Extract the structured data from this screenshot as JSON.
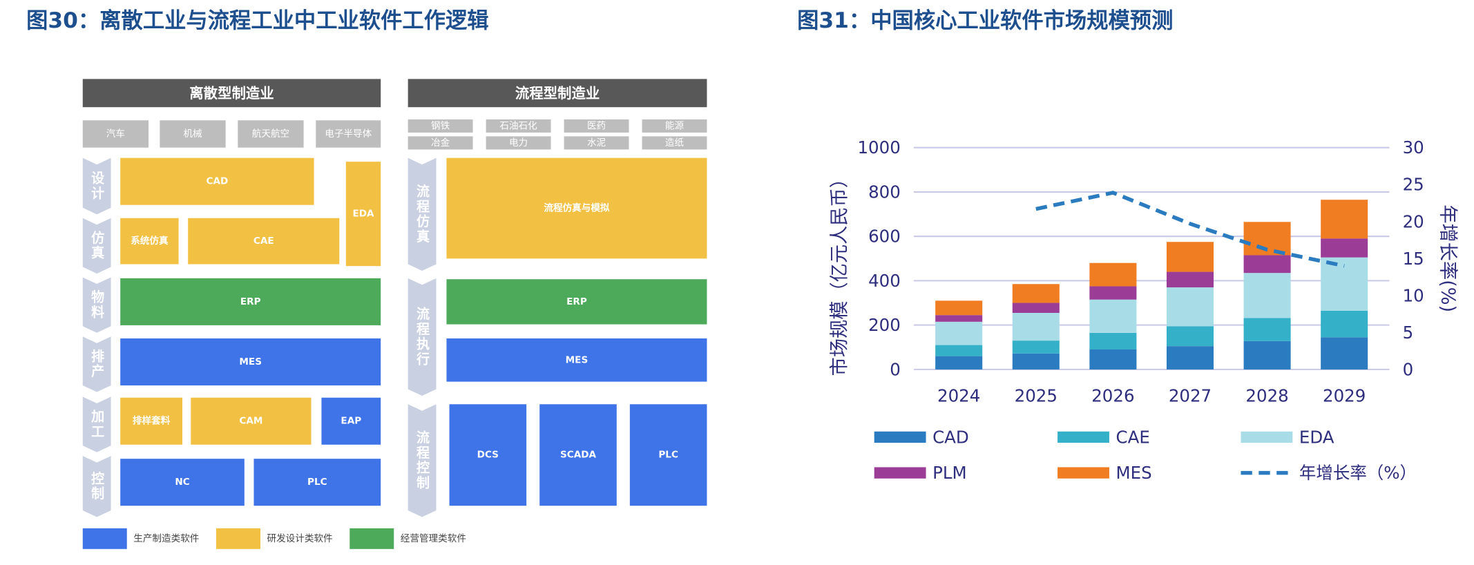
{
  "diagram": {
    "title": "图30：离散工业与流程工业中工业软件工作逻辑",
    "discrete": {
      "header": "离散型制造业",
      "industries": [
        "汽车",
        "机械",
        "航天航空",
        "电子半导体"
      ],
      "stages": [
        "设计",
        "仿真",
        "物料",
        "排产",
        "加工",
        "控制"
      ],
      "blocks": [
        {
          "label": "CAD",
          "color": "#f2c042"
        },
        {
          "label": "EDA",
          "color": "#f2c042"
        },
        {
          "label": "系统仿真",
          "color": "#f2c042"
        },
        {
          "label": "CAE",
          "color": "#f2c042"
        },
        {
          "label": "ERP",
          "color": "#4caa5a"
        },
        {
          "label": "MES",
          "color": "#3f74e8"
        },
        {
          "label": "排样套料",
          "color": "#f2c042"
        },
        {
          "label": "CAM",
          "color": "#f2c042"
        },
        {
          "label": "EAP",
          "color": "#3f74e8"
        },
        {
          "label": "NC",
          "color": "#3f74e8"
        },
        {
          "label": "PLC",
          "color": "#3f74e8"
        }
      ]
    },
    "process": {
      "header": "流程型制造业",
      "industries": [
        "钢铁",
        "石油石化",
        "医药",
        "能源",
        "冶金",
        "电力",
        "水泥",
        "造纸"
      ],
      "stages": [
        "流程仿真",
        "流程执行",
        "流程控制"
      ],
      "blocks": [
        {
          "label": "流程仿真与模拟",
          "color": "#f2c042"
        },
        {
          "label": "ERP",
          "color": "#4caa5a"
        },
        {
          "label": "MES",
          "color": "#3f74e8"
        },
        {
          "label": "DCS",
          "color": "#3f74e8"
        },
        {
          "label": "SCADA",
          "color": "#3f74e8"
        },
        {
          "label": "PLC",
          "color": "#3f74e8"
        }
      ]
    },
    "legend": [
      {
        "label": "生产制造类软件",
        "color": "#3f74e8"
      },
      {
        "label": "研发设计类软件",
        "color": "#f2c042"
      },
      {
        "label": "经营管理类软件",
        "color": "#4caa5a"
      }
    ]
  },
  "chart_data": {
    "type": "bar",
    "stacked": true,
    "title": "图31：中国核心工业软件市场规模预测",
    "ylabel": "市场规模（亿元人民币）",
    "y2label": "年增长率(%)",
    "categories": [
      "2024",
      "2025",
      "2026",
      "2027",
      "2028",
      "2029"
    ],
    "series": [
      {
        "name": "CAD",
        "color": "#2a7bbf",
        "values": [
          60,
          72,
          90,
          105,
          128,
          145
        ]
      },
      {
        "name": "CAE",
        "color": "#34b0c8",
        "values": [
          50,
          58,
          75,
          90,
          104,
          120
        ]
      },
      {
        "name": "EDA",
        "color": "#a8dde8",
        "values": [
          105,
          125,
          150,
          175,
          203,
          240
        ]
      },
      {
        "name": "PLM",
        "color": "#9b3c97",
        "values": [
          30,
          45,
          60,
          70,
          80,
          85
        ]
      },
      {
        "name": "MES",
        "color": "#f07d22",
        "values": [
          65,
          85,
          105,
          135,
          150,
          175
        ]
      },
      {
        "name": "年增长率（%）",
        "color": "#2a7bbf",
        "axis": "y2",
        "style": "dashed",
        "values": [
          null,
          21.7,
          23.9,
          19.7,
          16.2,
          14.0
        ]
      }
    ],
    "ylim": [
      0,
      1000
    ],
    "yticks": [
      0,
      200,
      400,
      600,
      800,
      1000
    ],
    "y2lim": [
      0,
      30
    ],
    "y2ticks": [
      0,
      5,
      10,
      15,
      20,
      25,
      30
    ],
    "grid": true
  }
}
